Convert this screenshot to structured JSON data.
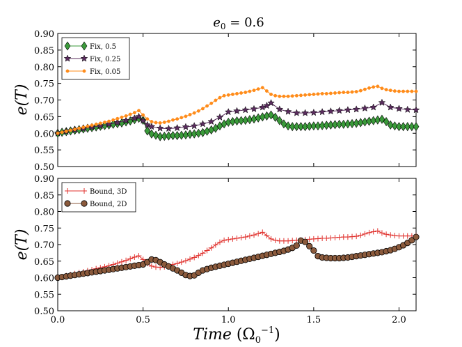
{
  "chart_data": {
    "type": "line",
    "title": "e₀ = 0.6",
    "xlabel": "Time (Ω₀⁻¹)",
    "xlim": [
      0.0,
      2.1
    ],
    "xticks": [
      0.0,
      0.5,
      1.0,
      1.5,
      2.0
    ],
    "xtick_labels": [
      "0.0",
      "0.5",
      "1.0",
      "1.5",
      "2.0"
    ],
    "panels": [
      {
        "ylabel": "e(T)",
        "ylim": [
          0.5,
          0.9
        ],
        "yticks": [
          0.5,
          0.55,
          0.6,
          0.65,
          0.7,
          0.75,
          0.8,
          0.85,
          0.9
        ],
        "ytick_labels": [
          "0.50",
          "0.55",
          "0.60",
          "0.65",
          "0.70",
          "0.75",
          "0.80",
          "0.85",
          "0.90"
        ],
        "legend_position": "top-left",
        "series": [
          {
            "name": "Fix, 0.5",
            "color": "#3a9a3a",
            "marker": "diamond",
            "x": [
              0.0,
              0.025,
              0.05,
              0.075,
              0.1,
              0.125,
              0.15,
              0.175,
              0.2,
              0.225,
              0.25,
              0.275,
              0.3,
              0.325,
              0.35,
              0.375,
              0.4,
              0.425,
              0.45,
              0.475,
              0.5,
              0.525,
              0.55,
              0.575,
              0.6,
              0.625,
              0.65,
              0.675,
              0.7,
              0.725,
              0.75,
              0.775,
              0.8,
              0.825,
              0.85,
              0.875,
              0.9,
              0.925,
              0.95,
              0.975,
              1.0,
              1.025,
              1.05,
              1.075,
              1.1,
              1.125,
              1.15,
              1.175,
              1.2,
              1.225,
              1.25,
              1.275,
              1.3,
              1.325,
              1.35,
              1.375,
              1.4,
              1.425,
              1.45,
              1.475,
              1.5,
              1.525,
              1.55,
              1.575,
              1.6,
              1.625,
              1.65,
              1.675,
              1.7,
              1.725,
              1.75,
              1.775,
              1.8,
              1.825,
              1.85,
              1.875,
              1.9,
              1.925,
              1.95,
              1.975,
              2.0,
              2.025,
              2.05,
              2.075,
              2.1
            ],
            "y": [
              0.6,
              0.603,
              0.605,
              0.607,
              0.609,
              0.611,
              0.613,
              0.615,
              0.617,
              0.619,
              0.621,
              0.623,
              0.625,
              0.627,
              0.629,
              0.631,
              0.634,
              0.637,
              0.641,
              0.645,
              0.639,
              0.607,
              0.598,
              0.594,
              0.59,
              0.591,
              0.592,
              0.593,
              0.593,
              0.594,
              0.595,
              0.597,
              0.598,
              0.6,
              0.602,
              0.606,
              0.61,
              0.615,
              0.622,
              0.628,
              0.633,
              0.635,
              0.637,
              0.638,
              0.639,
              0.641,
              0.643,
              0.646,
              0.649,
              0.652,
              0.655,
              0.648,
              0.638,
              0.628,
              0.622,
              0.62,
              0.62,
              0.62,
              0.62,
              0.621,
              0.622,
              0.622,
              0.623,
              0.624,
              0.625,
              0.626,
              0.627,
              0.627,
              0.628,
              0.629,
              0.63,
              0.632,
              0.634,
              0.636,
              0.638,
              0.64,
              0.642,
              0.635,
              0.625,
              0.622,
              0.62,
              0.62,
              0.62,
              0.62,
              0.62
            ]
          },
          {
            "name": "Fix, 0.25",
            "color": "#5a2c5e",
            "marker": "star",
            "x": [
              0.0,
              0.05,
              0.1,
              0.15,
              0.2,
              0.25,
              0.3,
              0.35,
              0.4,
              0.45,
              0.475,
              0.5,
              0.525,
              0.55,
              0.6,
              0.65,
              0.7,
              0.75,
              0.8,
              0.85,
              0.9,
              0.95,
              1.0,
              1.05,
              1.1,
              1.15,
              1.2,
              1.225,
              1.25,
              1.3,
              1.35,
              1.4,
              1.45,
              1.5,
              1.55,
              1.6,
              1.65,
              1.7,
              1.75,
              1.8,
              1.85,
              1.9,
              1.95,
              2.0,
              2.05,
              2.1
            ],
            "y": [
              0.6,
              0.605,
              0.61,
              0.614,
              0.618,
              0.622,
              0.627,
              0.632,
              0.638,
              0.645,
              0.65,
              0.638,
              0.625,
              0.62,
              0.615,
              0.614,
              0.616,
              0.619,
              0.622,
              0.628,
              0.635,
              0.648,
              0.664,
              0.667,
              0.67,
              0.673,
              0.678,
              0.683,
              0.691,
              0.672,
              0.665,
              0.661,
              0.661,
              0.662,
              0.664,
              0.666,
              0.668,
              0.67,
              0.672,
              0.675,
              0.678,
              0.692,
              0.678,
              0.674,
              0.671,
              0.67
            ]
          },
          {
            "name": "Fix, 0.05",
            "color": "#ff8c1a",
            "marker": "dot",
            "x": [
              0.0,
              0.025,
              0.05,
              0.075,
              0.1,
              0.125,
              0.15,
              0.175,
              0.2,
              0.225,
              0.25,
              0.275,
              0.3,
              0.325,
              0.35,
              0.375,
              0.4,
              0.425,
              0.45,
              0.475,
              0.5,
              0.525,
              0.55,
              0.575,
              0.6,
              0.625,
              0.65,
              0.675,
              0.7,
              0.725,
              0.75,
              0.775,
              0.8,
              0.825,
              0.85,
              0.875,
              0.9,
              0.925,
              0.95,
              0.975,
              1.0,
              1.025,
              1.05,
              1.075,
              1.1,
              1.125,
              1.15,
              1.175,
              1.2,
              1.225,
              1.25,
              1.275,
              1.3,
              1.325,
              1.35,
              1.375,
              1.4,
              1.425,
              1.45,
              1.475,
              1.5,
              1.525,
              1.55,
              1.575,
              1.6,
              1.625,
              1.65,
              1.675,
              1.7,
              1.725,
              1.75,
              1.775,
              1.8,
              1.825,
              1.85,
              1.875,
              1.9,
              1.925,
              1.95,
              1.975,
              2.0,
              2.025,
              2.05,
              2.075,
              2.1
            ],
            "y": [
              0.6,
              0.603,
              0.606,
              0.609,
              0.612,
              0.615,
              0.618,
              0.621,
              0.624,
              0.627,
              0.63,
              0.633,
              0.636,
              0.64,
              0.644,
              0.648,
              0.652,
              0.657,
              0.662,
              0.668,
              0.655,
              0.643,
              0.635,
              0.632,
              0.631,
              0.633,
              0.636,
              0.64,
              0.643,
              0.647,
              0.651,
              0.656,
              0.661,
              0.667,
              0.674,
              0.682,
              0.69,
              0.699,
              0.707,
              0.713,
              0.715,
              0.717,
              0.719,
              0.721,
              0.723,
              0.726,
              0.729,
              0.733,
              0.737,
              0.727,
              0.717,
              0.713,
              0.711,
              0.711,
              0.711,
              0.712,
              0.713,
              0.714,
              0.715,
              0.716,
              0.717,
              0.718,
              0.719,
              0.719,
              0.72,
              0.721,
              0.722,
              0.723,
              0.723,
              0.724,
              0.725,
              0.728,
              0.732,
              0.736,
              0.739,
              0.741,
              0.735,
              0.731,
              0.729,
              0.727,
              0.726,
              0.726,
              0.726,
              0.726,
              0.726
            ]
          }
        ]
      },
      {
        "ylabel": "e(T)",
        "ylim": [
          0.5,
          0.9
        ],
        "yticks": [
          0.5,
          0.55,
          0.6,
          0.65,
          0.7,
          0.75,
          0.8,
          0.85,
          0.9
        ],
        "ytick_labels": [
          "0.50",
          "0.55",
          "0.60",
          "0.65",
          "0.70",
          "0.75",
          "0.80",
          "0.85",
          "0.90"
        ],
        "legend_position": "top-left",
        "series": [
          {
            "name": "Bound, 3D",
            "color": "#e0322e",
            "marker": "plus",
            "x": [
              0.0,
              0.025,
              0.05,
              0.075,
              0.1,
              0.125,
              0.15,
              0.175,
              0.2,
              0.225,
              0.25,
              0.275,
              0.3,
              0.325,
              0.35,
              0.375,
              0.4,
              0.425,
              0.45,
              0.475,
              0.5,
              0.525,
              0.55,
              0.575,
              0.6,
              0.625,
              0.65,
              0.675,
              0.7,
              0.725,
              0.75,
              0.775,
              0.8,
              0.825,
              0.85,
              0.875,
              0.9,
              0.925,
              0.95,
              0.975,
              1.0,
              1.025,
              1.05,
              1.075,
              1.1,
              1.125,
              1.15,
              1.175,
              1.2,
              1.225,
              1.25,
              1.275,
              1.3,
              1.325,
              1.35,
              1.375,
              1.4,
              1.425,
              1.45,
              1.475,
              1.5,
              1.525,
              1.55,
              1.575,
              1.6,
              1.625,
              1.65,
              1.675,
              1.7,
              1.725,
              1.75,
              1.775,
              1.8,
              1.825,
              1.85,
              1.875,
              1.9,
              1.925,
              1.95,
              1.975,
              2.0,
              2.025,
              2.05,
              2.075,
              2.1
            ],
            "y": [
              0.6,
              0.603,
              0.606,
              0.609,
              0.612,
              0.615,
              0.618,
              0.621,
              0.624,
              0.627,
              0.63,
              0.633,
              0.636,
              0.64,
              0.644,
              0.648,
              0.652,
              0.657,
              0.662,
              0.666,
              0.655,
              0.643,
              0.635,
              0.632,
              0.631,
              0.633,
              0.636,
              0.64,
              0.643,
              0.647,
              0.651,
              0.656,
              0.661,
              0.667,
              0.674,
              0.682,
              0.69,
              0.699,
              0.707,
              0.713,
              0.715,
              0.717,
              0.719,
              0.721,
              0.723,
              0.726,
              0.729,
              0.733,
              0.737,
              0.727,
              0.717,
              0.713,
              0.711,
              0.711,
              0.711,
              0.712,
              0.713,
              0.714,
              0.715,
              0.716,
              0.717,
              0.718,
              0.719,
              0.719,
              0.72,
              0.721,
              0.722,
              0.723,
              0.723,
              0.724,
              0.725,
              0.728,
              0.732,
              0.736,
              0.739,
              0.741,
              0.735,
              0.731,
              0.729,
              0.727,
              0.726,
              0.726,
              0.726,
              0.726,
              0.726
            ]
          },
          {
            "name": "Bound, 2D",
            "color": "#8b5a3c",
            "marker": "circle",
            "x": [
              0.0,
              0.025,
              0.05,
              0.075,
              0.1,
              0.125,
              0.15,
              0.175,
              0.2,
              0.225,
              0.25,
              0.275,
              0.3,
              0.325,
              0.35,
              0.375,
              0.4,
              0.425,
              0.45,
              0.475,
              0.5,
              0.525,
              0.55,
              0.575,
              0.6,
              0.625,
              0.65,
              0.675,
              0.7,
              0.725,
              0.75,
              0.775,
              0.8,
              0.825,
              0.85,
              0.875,
              0.9,
              0.925,
              0.95,
              0.975,
              1.0,
              1.025,
              1.05,
              1.075,
              1.1,
              1.125,
              1.15,
              1.175,
              1.2,
              1.225,
              1.25,
              1.275,
              1.3,
              1.325,
              1.35,
              1.375,
              1.4,
              1.425,
              1.45,
              1.475,
              1.5,
              1.525,
              1.55,
              1.575,
              1.6,
              1.625,
              1.65,
              1.675,
              1.7,
              1.725,
              1.75,
              1.775,
              1.8,
              1.825,
              1.85,
              1.875,
              1.9,
              1.925,
              1.95,
              1.975,
              2.0,
              2.025,
              2.05,
              2.075,
              2.1
            ],
            "y": [
              0.6,
              0.602,
              0.604,
              0.606,
              0.608,
              0.61,
              0.612,
              0.614,
              0.616,
              0.618,
              0.62,
              0.622,
              0.624,
              0.626,
              0.628,
              0.63,
              0.632,
              0.634,
              0.636,
              0.638,
              0.64,
              0.647,
              0.655,
              0.653,
              0.647,
              0.64,
              0.634,
              0.628,
              0.622,
              0.615,
              0.608,
              0.605,
              0.607,
              0.615,
              0.622,
              0.626,
              0.63,
              0.633,
              0.636,
              0.639,
              0.642,
              0.645,
              0.648,
              0.651,
              0.654,
              0.657,
              0.66,
              0.663,
              0.666,
              0.669,
              0.672,
              0.675,
              0.678,
              0.681,
              0.685,
              0.69,
              0.697,
              0.712,
              0.708,
              0.695,
              0.682,
              0.665,
              0.661,
              0.66,
              0.659,
              0.659,
              0.659,
              0.66,
              0.661,
              0.663,
              0.665,
              0.667,
              0.669,
              0.671,
              0.673,
              0.675,
              0.677,
              0.68,
              0.683,
              0.687,
              0.692,
              0.698,
              0.705,
              0.713,
              0.723
            ]
          }
        ]
      }
    ]
  }
}
